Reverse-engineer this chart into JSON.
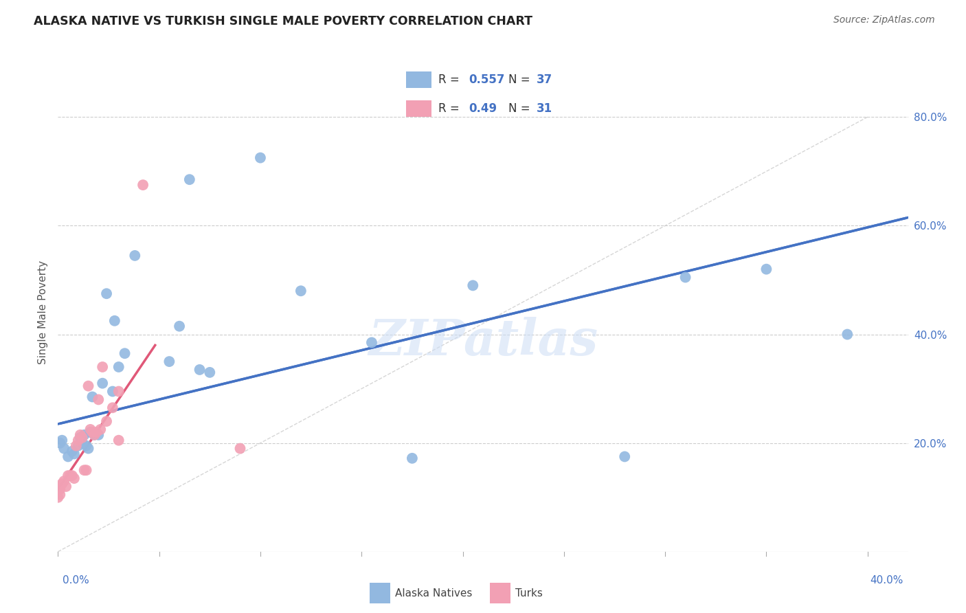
{
  "title": "ALASKA NATIVE VS TURKISH SINGLE MALE POVERTY CORRELATION CHART",
  "source": "Source: ZipAtlas.com",
  "ylabel": "Single Male Poverty",
  "y_ticks": [
    0.2,
    0.4,
    0.6,
    0.8
  ],
  "xlim": [
    0.0,
    0.42
  ],
  "ylim": [
    0.0,
    0.88
  ],
  "alaska_R": 0.557,
  "alaska_N": 37,
  "turk_R": 0.49,
  "turk_N": 31,
  "alaska_color": "#92b8e0",
  "turk_color": "#f2a0b4",
  "alaska_line_color": "#4472c4",
  "turk_line_color": "#e05878",
  "diagonal_color": "#cccccc",
  "watermark": "ZIPatlas",
  "alaska_line_x0": 0.0,
  "alaska_line_y0": 0.235,
  "alaska_line_x1": 0.42,
  "alaska_line_y1": 0.615,
  "turk_line_x0": 0.0,
  "turk_line_y0": 0.115,
  "turk_line_x1": 0.048,
  "turk_line_y1": 0.38,
  "alaska_scatter_x": [
    0.001,
    0.002,
    0.003,
    0.005,
    0.007,
    0.008,
    0.01,
    0.011,
    0.012,
    0.013,
    0.014,
    0.015,
    0.016,
    0.017,
    0.018,
    0.02,
    0.022,
    0.024,
    0.027,
    0.028,
    0.03,
    0.033,
    0.038,
    0.055,
    0.06,
    0.065,
    0.07,
    0.075,
    0.1,
    0.12,
    0.155,
    0.175,
    0.205,
    0.28,
    0.31,
    0.35,
    0.39
  ],
  "alaska_scatter_y": [
    0.2,
    0.205,
    0.19,
    0.175,
    0.185,
    0.18,
    0.195,
    0.21,
    0.2,
    0.215,
    0.195,
    0.19,
    0.22,
    0.285,
    0.215,
    0.215,
    0.31,
    0.475,
    0.295,
    0.425,
    0.34,
    0.365,
    0.545,
    0.35,
    0.415,
    0.685,
    0.335,
    0.33,
    0.725,
    0.48,
    0.385,
    0.172,
    0.49,
    0.175,
    0.505,
    0.52,
    0.4
  ],
  "turk_scatter_x": [
    0.0,
    0.001,
    0.001,
    0.001,
    0.002,
    0.003,
    0.004,
    0.005,
    0.006,
    0.007,
    0.008,
    0.009,
    0.01,
    0.011,
    0.012,
    0.013,
    0.014,
    0.015,
    0.016,
    0.017,
    0.018,
    0.019,
    0.02,
    0.021,
    0.022,
    0.024,
    0.027,
    0.03,
    0.03,
    0.042,
    0.09
  ],
  "turk_scatter_y": [
    0.1,
    0.105,
    0.115,
    0.12,
    0.125,
    0.13,
    0.12,
    0.14,
    0.14,
    0.14,
    0.135,
    0.195,
    0.205,
    0.215,
    0.21,
    0.15,
    0.15,
    0.305,
    0.225,
    0.22,
    0.215,
    0.22,
    0.28,
    0.225,
    0.34,
    0.24,
    0.265,
    0.295,
    0.205,
    0.675,
    0.19
  ],
  "background_color": "#ffffff",
  "grid_color": "#cccccc"
}
